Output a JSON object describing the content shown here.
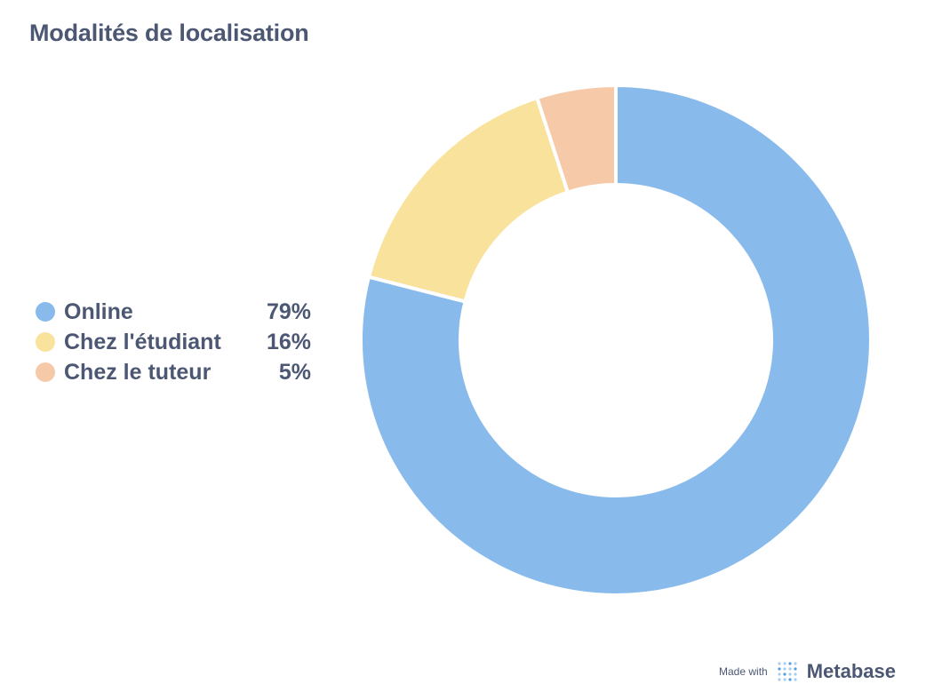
{
  "title": "Modalités de localisation",
  "chart_data": {
    "type": "pie",
    "variant": "donut",
    "title": "Modalités de localisation",
    "slices": [
      {
        "label": "Online",
        "value": 79,
        "display": "79%",
        "color": "#88bbec"
      },
      {
        "label": "Chez l'étudiant",
        "value": 16,
        "display": "16%",
        "color": "#f9e29c"
      },
      {
        "label": "Chez le tuteur",
        "value": 5,
        "display": "5%",
        "color": "#f6c9a9"
      }
    ],
    "legend_position": "left"
  },
  "footer": {
    "made_with": "Made with",
    "brand": "Metabase",
    "logo_icon": "metabase-logo-icon"
  }
}
